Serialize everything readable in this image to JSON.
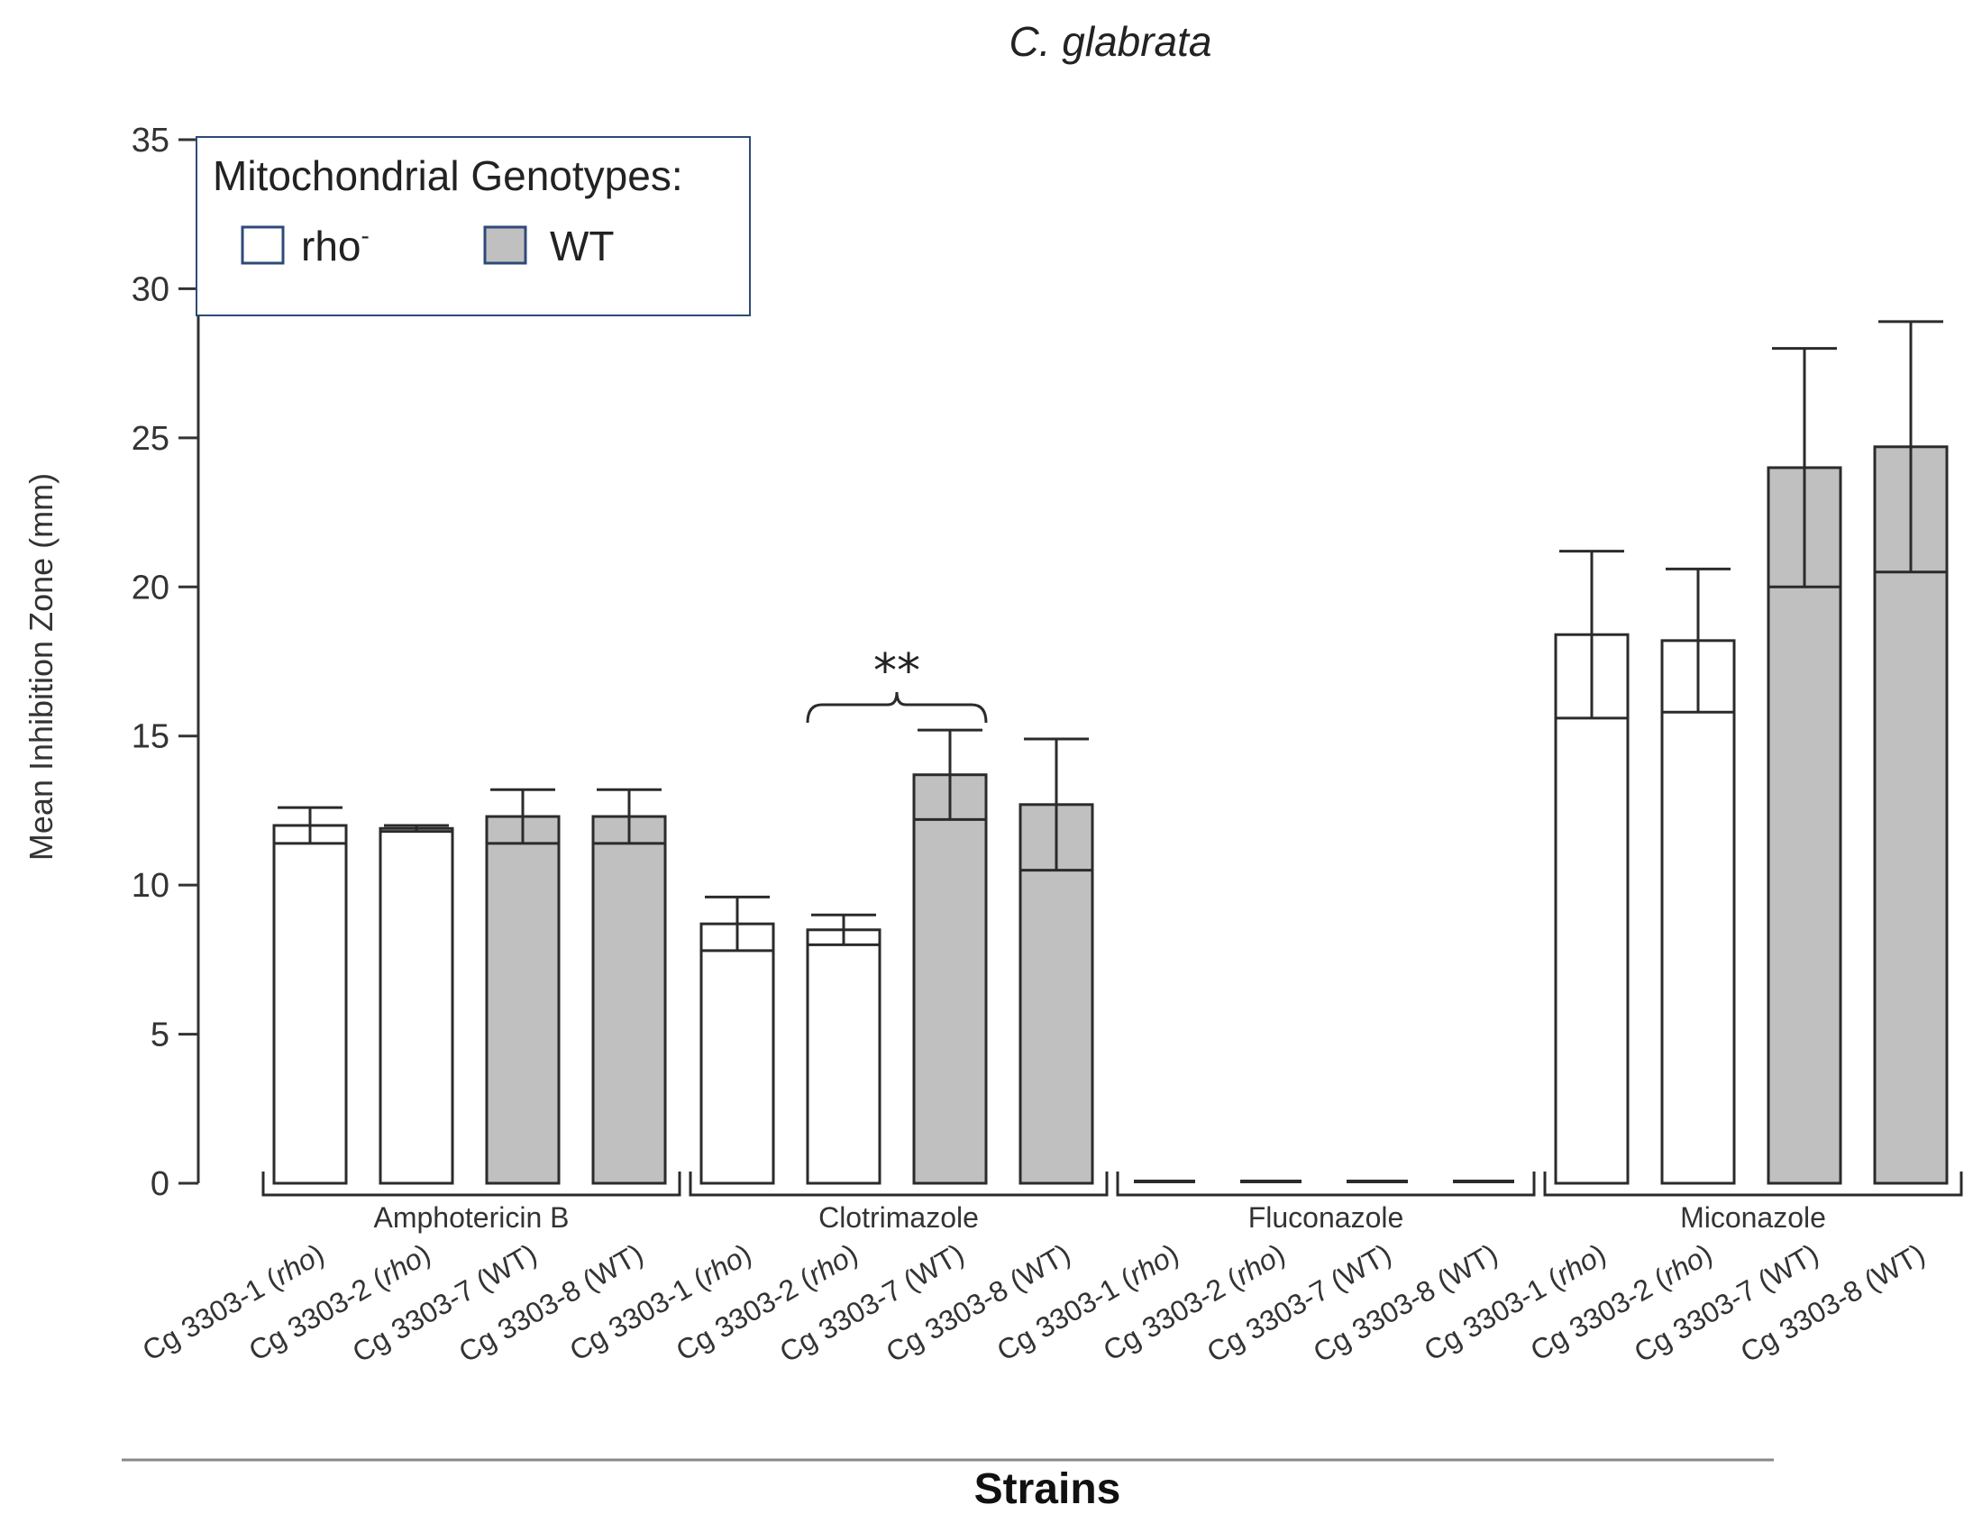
{
  "chart_data": {
    "type": "bar",
    "title": "C. glabrata",
    "ylabel": "Mean Inhibition Zone (mm)",
    "xlabel": "Strains",
    "ylim": [
      0,
      35
    ],
    "yticks": [
      0,
      5,
      10,
      15,
      20,
      25,
      30,
      35
    ],
    "grid": false,
    "legend": {
      "title": "Mitochondrial Genotypes:",
      "position": "top-left",
      "entries": [
        {
          "label": "rho",
          "superscript": "-",
          "color": "#ffffff"
        },
        {
          "label": "WT",
          "superscript": "",
          "color": "#c0c0c0"
        }
      ]
    },
    "significance": {
      "label": "**",
      "between_groups": "Clotrimazole",
      "from_bar": 1,
      "to_bar": 2
    },
    "groups": [
      {
        "name": "Amphotericin B",
        "bars": [
          {
            "strain_prefix": "Cg  3303-1 (",
            "strain_genotype": "rho",
            "strain_suffix": ")",
            "genotype": "rho",
            "value": 12.0,
            "error": 0.6
          },
          {
            "strain_prefix": "Cg  3303-2 (",
            "strain_genotype": "rho",
            "strain_suffix": ")",
            "genotype": "rho",
            "value": 11.9,
            "error": 0.1
          },
          {
            "strain_prefix": "Cg  3303-7 (WT)",
            "strain_genotype": "",
            "strain_suffix": "",
            "genotype": "WT",
            "value": 12.3,
            "error": 0.9
          },
          {
            "strain_prefix": "Cg  3303-8 (WT)",
            "strain_genotype": "",
            "strain_suffix": "",
            "genotype": "WT",
            "value": 12.3,
            "error": 0.9
          }
        ]
      },
      {
        "name": "Clotrimazole",
        "bars": [
          {
            "strain_prefix": "Cg  3303-1 (",
            "strain_genotype": "rho",
            "strain_suffix": ")",
            "genotype": "rho",
            "value": 8.7,
            "error": 0.9
          },
          {
            "strain_prefix": "Cg  3303-2 (",
            "strain_genotype": "rho",
            "strain_suffix": ")",
            "genotype": "rho",
            "value": 8.5,
            "error": 0.5
          },
          {
            "strain_prefix": "Cg  3303-7 (WT)",
            "strain_genotype": "",
            "strain_suffix": "",
            "genotype": "WT",
            "value": 13.7,
            "error": 1.5
          },
          {
            "strain_prefix": "Cg  3303-8 (WT)",
            "strain_genotype": "",
            "strain_suffix": "",
            "genotype": "WT",
            "value": 12.7,
            "error": 2.2
          }
        ]
      },
      {
        "name": "Fluconazole",
        "bars": [
          {
            "strain_prefix": "Cg  3303-1 (",
            "strain_genotype": "rho",
            "strain_suffix": ")",
            "genotype": "rho",
            "value": 0,
            "error": 0
          },
          {
            "strain_prefix": "Cg  3303-2 (",
            "strain_genotype": "rho",
            "strain_suffix": ")",
            "genotype": "rho",
            "value": 0,
            "error": 0
          },
          {
            "strain_prefix": "Cg  3303-7 (WT)",
            "strain_genotype": "",
            "strain_suffix": "",
            "genotype": "WT",
            "value": 0,
            "error": 0
          },
          {
            "strain_prefix": "Cg  3303-8 (WT)",
            "strain_genotype": "",
            "strain_suffix": "",
            "genotype": "WT",
            "value": 0,
            "error": 0
          }
        ]
      },
      {
        "name": "Miconazole",
        "bars": [
          {
            "strain_prefix": "Cg  3303-1 (",
            "strain_genotype": "rho",
            "strain_suffix": ")",
            "genotype": "rho",
            "value": 18.4,
            "error": 2.8
          },
          {
            "strain_prefix": "Cg  3303-2 (",
            "strain_genotype": "rho",
            "strain_suffix": ")",
            "genotype": "rho",
            "value": 18.2,
            "error": 2.4
          },
          {
            "strain_prefix": "Cg  3303-7 (WT)",
            "strain_genotype": "",
            "strain_suffix": "",
            "genotype": "WT",
            "value": 24.0,
            "error": 4.0
          },
          {
            "strain_prefix": "Cg  3303-8 (WT)",
            "strain_genotype": "",
            "strain_suffix": "",
            "genotype": "WT",
            "value": 24.7,
            "error": 4.2
          }
        ]
      }
    ],
    "colors": {
      "rho": "#ffffff",
      "WT": "#c0c0c0",
      "outline": "#2b2b2b",
      "axis": "#333333",
      "legend_border": "#2f4a78"
    }
  }
}
